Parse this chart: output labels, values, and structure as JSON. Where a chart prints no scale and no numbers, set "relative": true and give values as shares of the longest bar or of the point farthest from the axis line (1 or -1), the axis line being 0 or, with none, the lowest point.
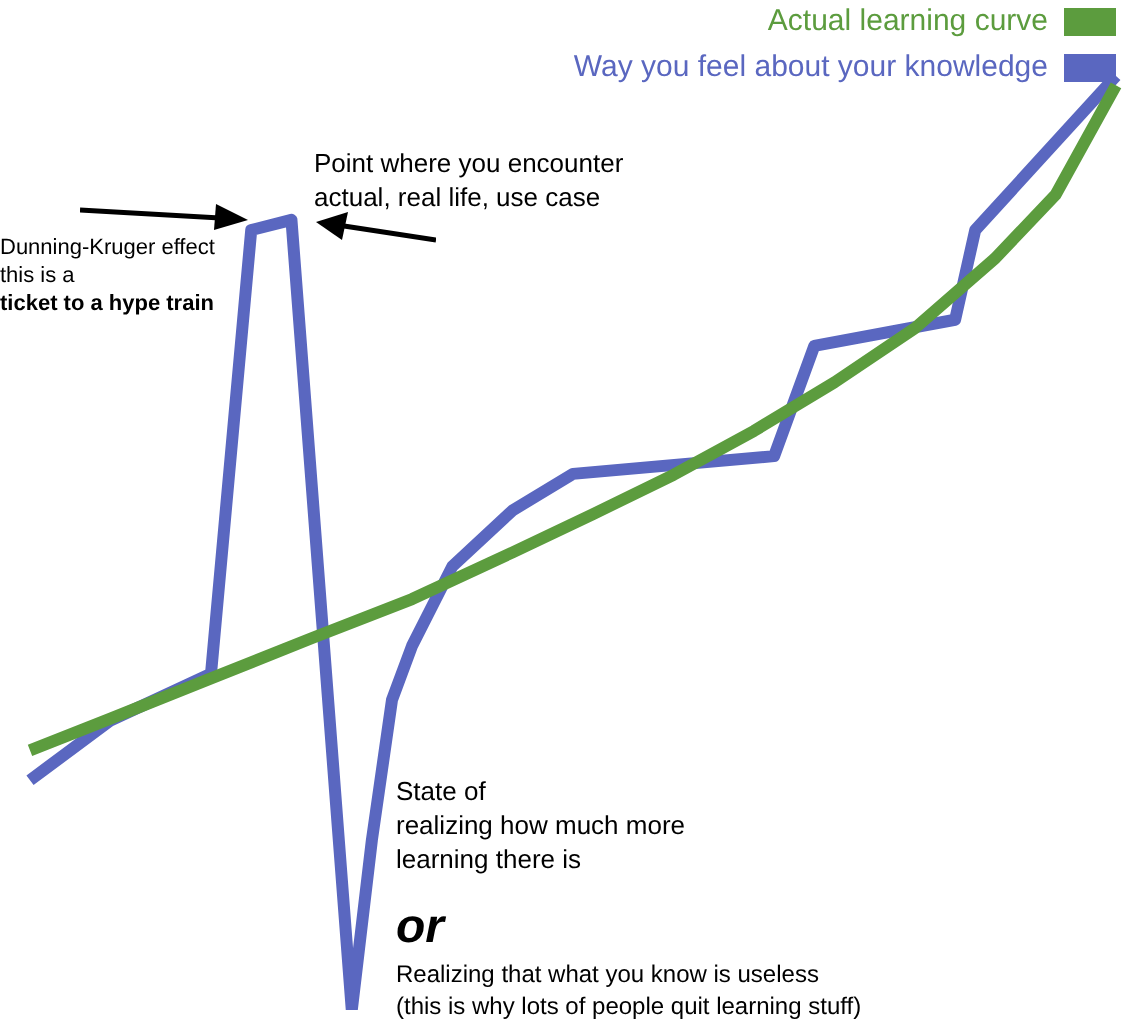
{
  "chart_data": {
    "type": "line",
    "relative": true,
    "legend": "top right",
    "categories": [
      null,
      null,
      null,
      null,
      null,
      null,
      null,
      null,
      null,
      null,
      null,
      null,
      null,
      null,
      null,
      null,
      null,
      null,
      null,
      null,
      null,
      null,
      null,
      null,
      null,
      null,
      null,
      null,
      null,
      null,
      null,
      null,
      null,
      null,
      null,
      null,
      null,
      null,
      null,
      null,
      null,
      null,
      null,
      null,
      null,
      null,
      null,
      null,
      null,
      null,
      null,
      null,
      null,
      null,
      null
    ],
    "series": [
      {
        "name": "Actual learning curve",
        "color": "#5c9c3e",
        "values": [
          0.278,
          null,
          null,
          null,
          0.312,
          null,
          null,
          null,
          null,
          0.355,
          null,
          null,
          null,
          null,
          0.398,
          null,
          null,
          null,
          null,
          0.44,
          null,
          null,
          null,
          null,
          0.49,
          null,
          null,
          null,
          0.531,
          null,
          null,
          null,
          0.573,
          null,
          null,
          null,
          0.62,
          null,
          null,
          null,
          0.672,
          null,
          null,
          null,
          0.73,
          null,
          null,
          null,
          0.805,
          null,
          null,
          0.873,
          null,
          null,
          0.99
        ]
      },
      {
        "name": "Way you feel about your knowledge",
        "color": "#5a67c0",
        "values": [
          0.246,
          null,
          null,
          null,
          0.31,
          null,
          null,
          null,
          null,
          0.36,
          null,
          0.835,
          null,
          0.846,
          null,
          null,
          0,
          0.182,
          0.332,
          0.39,
          null,
          0.475,
          null,
          null,
          0.535,
          null,
          null,
          0.574,
          null,
          null,
          null,
          null,
          null,
          null,
          null,
          null,
          null,
          0.593,
          null,
          0.711,
          null,
          null,
          null,
          null,
          null,
          null,
          0.739,
          0.835,
          null,
          null,
          null,
          null,
          null,
          null,
          1
        ]
      }
    ],
    "annotations": [
      "Point where you encounter\nactual, real life, use case",
      "Dunning-Kruger effect\nthis is a",
      "ticket to a hype train",
      "State of\nrealizing how much more\nlearning there is",
      "or",
      "Realizing that what you know is useless\n(this is why lots of people quit learning stuff)"
    ]
  }
}
